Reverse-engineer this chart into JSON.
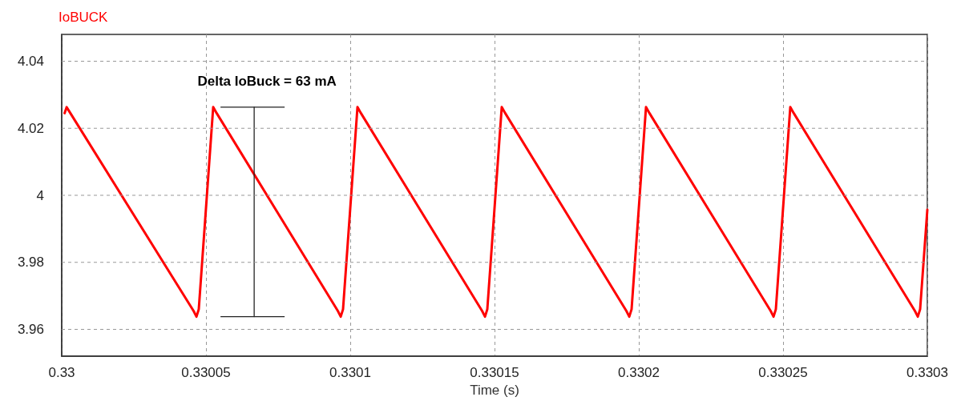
{
  "chart_data": {
    "type": "line",
    "title": "IoBUCK",
    "xlabel": "Time (s)",
    "x": [
      0.330001,
      0.3300017,
      0.330003,
      0.3300457,
      0.3300467,
      0.3300475,
      0.3300525,
      0.3300537,
      0.3300957,
      0.3300967,
      0.3300975,
      0.3301025,
      0.3301037,
      0.3301457,
      0.3301467,
      0.3301475,
      0.3301525,
      0.3301537,
      0.3301957,
      0.3301967,
      0.3301975,
      0.3302025,
      0.3302037,
      0.3302457,
      0.3302467,
      0.3302475,
      0.3302525,
      0.3302537,
      0.3302957,
      0.3302967,
      0.3302975,
      0.3303
    ],
    "series": [
      {
        "color": "#ff0000",
        "values": [
          4.0245,
          4.0263,
          4.0245,
          3.9655,
          3.9638,
          3.966,
          4.0263,
          4.0245,
          3.9655,
          3.9638,
          3.966,
          4.0263,
          4.0245,
          3.9655,
          3.9638,
          3.966,
          4.0263,
          4.0245,
          3.9655,
          3.9638,
          3.966,
          4.0263,
          4.0245,
          3.9655,
          3.9638,
          3.966,
          4.0263,
          4.0245,
          3.9655,
          3.9638,
          3.966,
          3.9957
        ]
      },
      {
        "type": "line",
        "color": "#222222",
        "x": [
          0.3300667,
          0.3300667
        ],
        "values": [
          3.9638,
          4.0263
        ]
      }
    ],
    "annotations": [
      "Delta IoBuck = 63 mA"
    ],
    "xlim": [
      0.33,
      0.3303
    ],
    "xticks": [
      0.33,
      0.33005,
      0.3301,
      0.33015,
      0.3302,
      0.33025,
      0.3303
    ],
    "ylim": [
      3.952,
      4.048
    ],
    "yticks": [
      3.96,
      3.98,
      4,
      4.02,
      4.04
    ],
    "grid": true,
    "marker": "none",
    "line_style": "solid"
  }
}
